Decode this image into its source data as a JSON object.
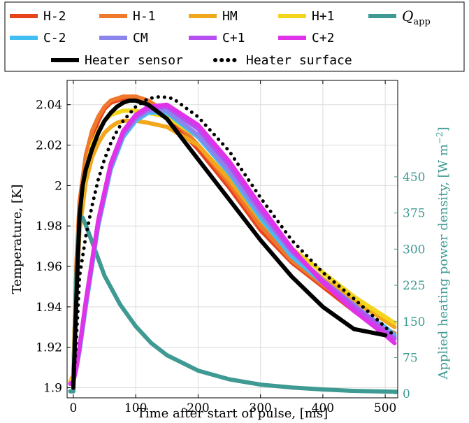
{
  "chart_data": {
    "type": "line",
    "xlabel": "Time after start of pulse, [ms]",
    "ylabel": "Temperature, [K]",
    "y2label": "Applied heating power density, [W m",
    "y2label_exp": "−2",
    "y2label_close": "]",
    "xlim": [
      -10,
      520
    ],
    "ylim": [
      1.895,
      2.052
    ],
    "y2lim": [
      -8.4,
      650
    ],
    "xticks": [
      0,
      100,
      200,
      300,
      400,
      500
    ],
    "yticks": [
      1.9,
      1.92,
      1.94,
      1.96,
      1.98,
      2.0,
      2.02,
      2.04
    ],
    "ytick_labels": [
      "1.9",
      "1.92",
      "1.94",
      "1.96",
      "1.98",
      "2",
      "2.02",
      "2.04"
    ],
    "y2ticks": [
      0,
      75,
      150,
      225,
      300,
      375,
      450
    ],
    "grid": true,
    "legend_position": "top",
    "series": [
      {
        "name": "H-2",
        "color": "#e8431c",
        "width": 6,
        "style": "solid",
        "x": [
          -5,
          0,
          5,
          10,
          20,
          30,
          40,
          50,
          60,
          70,
          80,
          100,
          120,
          150,
          200,
          250,
          300,
          350,
          400,
          450,
          500,
          515
        ],
        "y": [
          1.903,
          1.905,
          1.96,
          1.99,
          2.012,
          2.024,
          2.032,
          2.038,
          2.041,
          2.042,
          2.043,
          2.043,
          2.04,
          2.034,
          2.018,
          1.999,
          1.978,
          1.962,
          1.95,
          1.938,
          1.927,
          1.925
        ]
      },
      {
        "name": "H-1",
        "color": "#f0782d",
        "width": 6,
        "style": "solid",
        "x": [
          -5,
          0,
          5,
          10,
          20,
          30,
          40,
          50,
          60,
          70,
          80,
          100,
          120,
          150,
          200,
          250,
          300,
          350,
          400,
          450,
          500,
          515
        ],
        "y": [
          1.903,
          1.906,
          1.962,
          1.992,
          2.015,
          2.027,
          2.034,
          2.039,
          2.042,
          2.043,
          2.044,
          2.044,
          2.042,
          2.036,
          2.02,
          2.001,
          1.98,
          1.963,
          1.951,
          1.94,
          1.929,
          1.927
        ]
      },
      {
        "name": "HM",
        "color": "#f2a81c",
        "width": 6,
        "style": "solid",
        "x": [
          -5,
          0,
          5,
          10,
          20,
          30,
          40,
          50,
          60,
          70,
          80,
          100,
          120,
          150,
          200,
          250,
          300,
          350,
          400,
          450,
          500,
          515
        ],
        "y": [
          1.903,
          1.904,
          1.95,
          1.978,
          2.002,
          2.014,
          2.021,
          2.026,
          2.029,
          2.031,
          2.032,
          2.032,
          2.031,
          2.029,
          2.02,
          2.003,
          1.983,
          1.966,
          1.954,
          1.943,
          1.933,
          1.93
        ]
      },
      {
        "name": "H+1",
        "color": "#f4d51b",
        "width": 6,
        "style": "solid",
        "x": [
          -5,
          0,
          5,
          10,
          20,
          30,
          40,
          50,
          60,
          70,
          80,
          100,
          120,
          150,
          200,
          250,
          300,
          350,
          400,
          450,
          500,
          515
        ],
        "y": [
          1.903,
          1.905,
          1.955,
          1.985,
          2.008,
          2.02,
          2.027,
          2.032,
          2.035,
          2.036,
          2.037,
          2.037,
          2.036,
          2.034,
          2.024,
          2.007,
          1.986,
          1.969,
          1.957,
          1.945,
          1.935,
          1.932
        ]
      },
      {
        "name": "Q_app",
        "color": "#3e9a92",
        "width": 6,
        "style": "solid",
        "axis": "right",
        "x": [
          -5,
          0,
          5,
          10,
          15,
          20,
          30,
          50,
          75,
          100,
          125,
          150,
          200,
          250,
          300,
          350,
          400,
          450,
          520
        ],
        "y": [
          5,
          5,
          250,
          370,
          365,
          350,
          315,
          245,
          185,
          140,
          105,
          80,
          48,
          30,
          19,
          13,
          9,
          6,
          4
        ]
      },
      {
        "name": "C-2",
        "color": "#42bff2",
        "width": 6,
        "style": "solid",
        "x": [
          -5,
          0,
          5,
          10,
          20,
          30,
          40,
          60,
          80,
          100,
          120,
          150,
          200,
          250,
          300,
          350,
          400,
          450,
          500,
          515
        ],
        "y": [
          1.902,
          1.903,
          1.91,
          1.918,
          1.94,
          1.96,
          1.98,
          2.008,
          2.024,
          2.032,
          2.036,
          2.036,
          2.024,
          2.006,
          1.984,
          1.965,
          1.952,
          1.94,
          1.93,
          1.926
        ]
      },
      {
        "name": "CM",
        "color": "#8c85ec",
        "width": 6,
        "style": "solid",
        "x": [
          -5,
          0,
          5,
          10,
          20,
          30,
          40,
          60,
          80,
          100,
          120,
          150,
          200,
          250,
          300,
          350,
          400,
          450,
          500,
          515
        ],
        "y": [
          1.902,
          1.903,
          1.91,
          1.919,
          1.941,
          1.961,
          1.981,
          2.009,
          2.025,
          2.033,
          2.037,
          2.037,
          2.025,
          2.007,
          1.986,
          1.967,
          1.953,
          1.941,
          1.929,
          1.925
        ]
      },
      {
        "name": "C+1",
        "color": "#b64ff0",
        "width": 6,
        "style": "solid",
        "x": [
          -5,
          0,
          5,
          10,
          20,
          30,
          40,
          60,
          80,
          100,
          120,
          150,
          200,
          250,
          300,
          350,
          400,
          450,
          500,
          515
        ],
        "y": [
          1.902,
          1.903,
          1.91,
          1.92,
          1.942,
          1.962,
          1.982,
          2.01,
          2.026,
          2.034,
          2.038,
          2.039,
          2.028,
          2.01,
          1.988,
          1.968,
          1.953,
          1.94,
          1.928,
          1.924
        ]
      },
      {
        "name": "C+2",
        "color": "#e032e8",
        "width": 6,
        "style": "solid",
        "x": [
          -5,
          0,
          5,
          10,
          20,
          30,
          40,
          60,
          80,
          100,
          120,
          150,
          200,
          250,
          300,
          350,
          400,
          450,
          500,
          515
        ],
        "y": [
          1.902,
          1.903,
          1.91,
          1.92,
          1.943,
          1.963,
          1.983,
          2.011,
          2.027,
          2.035,
          2.039,
          2.04,
          2.03,
          2.012,
          1.99,
          1.969,
          1.952,
          1.938,
          1.926,
          1.922
        ]
      },
      {
        "name": "Heater sensor",
        "color": "#000000",
        "width": 6,
        "style": "solid",
        "x": [
          0,
          5,
          10,
          15,
          20,
          30,
          40,
          50,
          60,
          70,
          80,
          90,
          100,
          120,
          150,
          200,
          250,
          300,
          350,
          400,
          450,
          500
        ],
        "y": [
          1.9,
          1.945,
          1.985,
          2.0,
          2.008,
          2.018,
          2.026,
          2.032,
          2.036,
          2.039,
          2.041,
          2.042,
          2.042,
          2.04,
          2.033,
          2.013,
          1.993,
          1.973,
          1.955,
          1.94,
          1.929,
          1.926
        ]
      },
      {
        "name": "Heater surface",
        "color": "#000000",
        "width": 4,
        "style": "dotted",
        "x": [
          0,
          5,
          10,
          20,
          30,
          40,
          50,
          60,
          70,
          80,
          100,
          120,
          140,
          160,
          200,
          250,
          300,
          350,
          400,
          450,
          500,
          510
        ],
        "y": [
          1.9,
          1.925,
          1.955,
          1.975,
          1.99,
          2.003,
          2.013,
          2.021,
          2.027,
          2.032,
          2.039,
          2.043,
          2.044,
          2.043,
          2.034,
          2.017,
          1.994,
          1.973,
          1.957,
          1.944,
          1.93,
          1.927
        ]
      }
    ]
  },
  "legend": {
    "rows": [
      [
        "H-2",
        "H-1",
        "HM",
        "H+1",
        "Q_app"
      ],
      [
        "C-2",
        "CM",
        "C+1",
        "C+2"
      ],
      [
        "Heater sensor",
        "Heater surface"
      ]
    ],
    "q_symbol": "Q",
    "q_subscript": "app"
  }
}
